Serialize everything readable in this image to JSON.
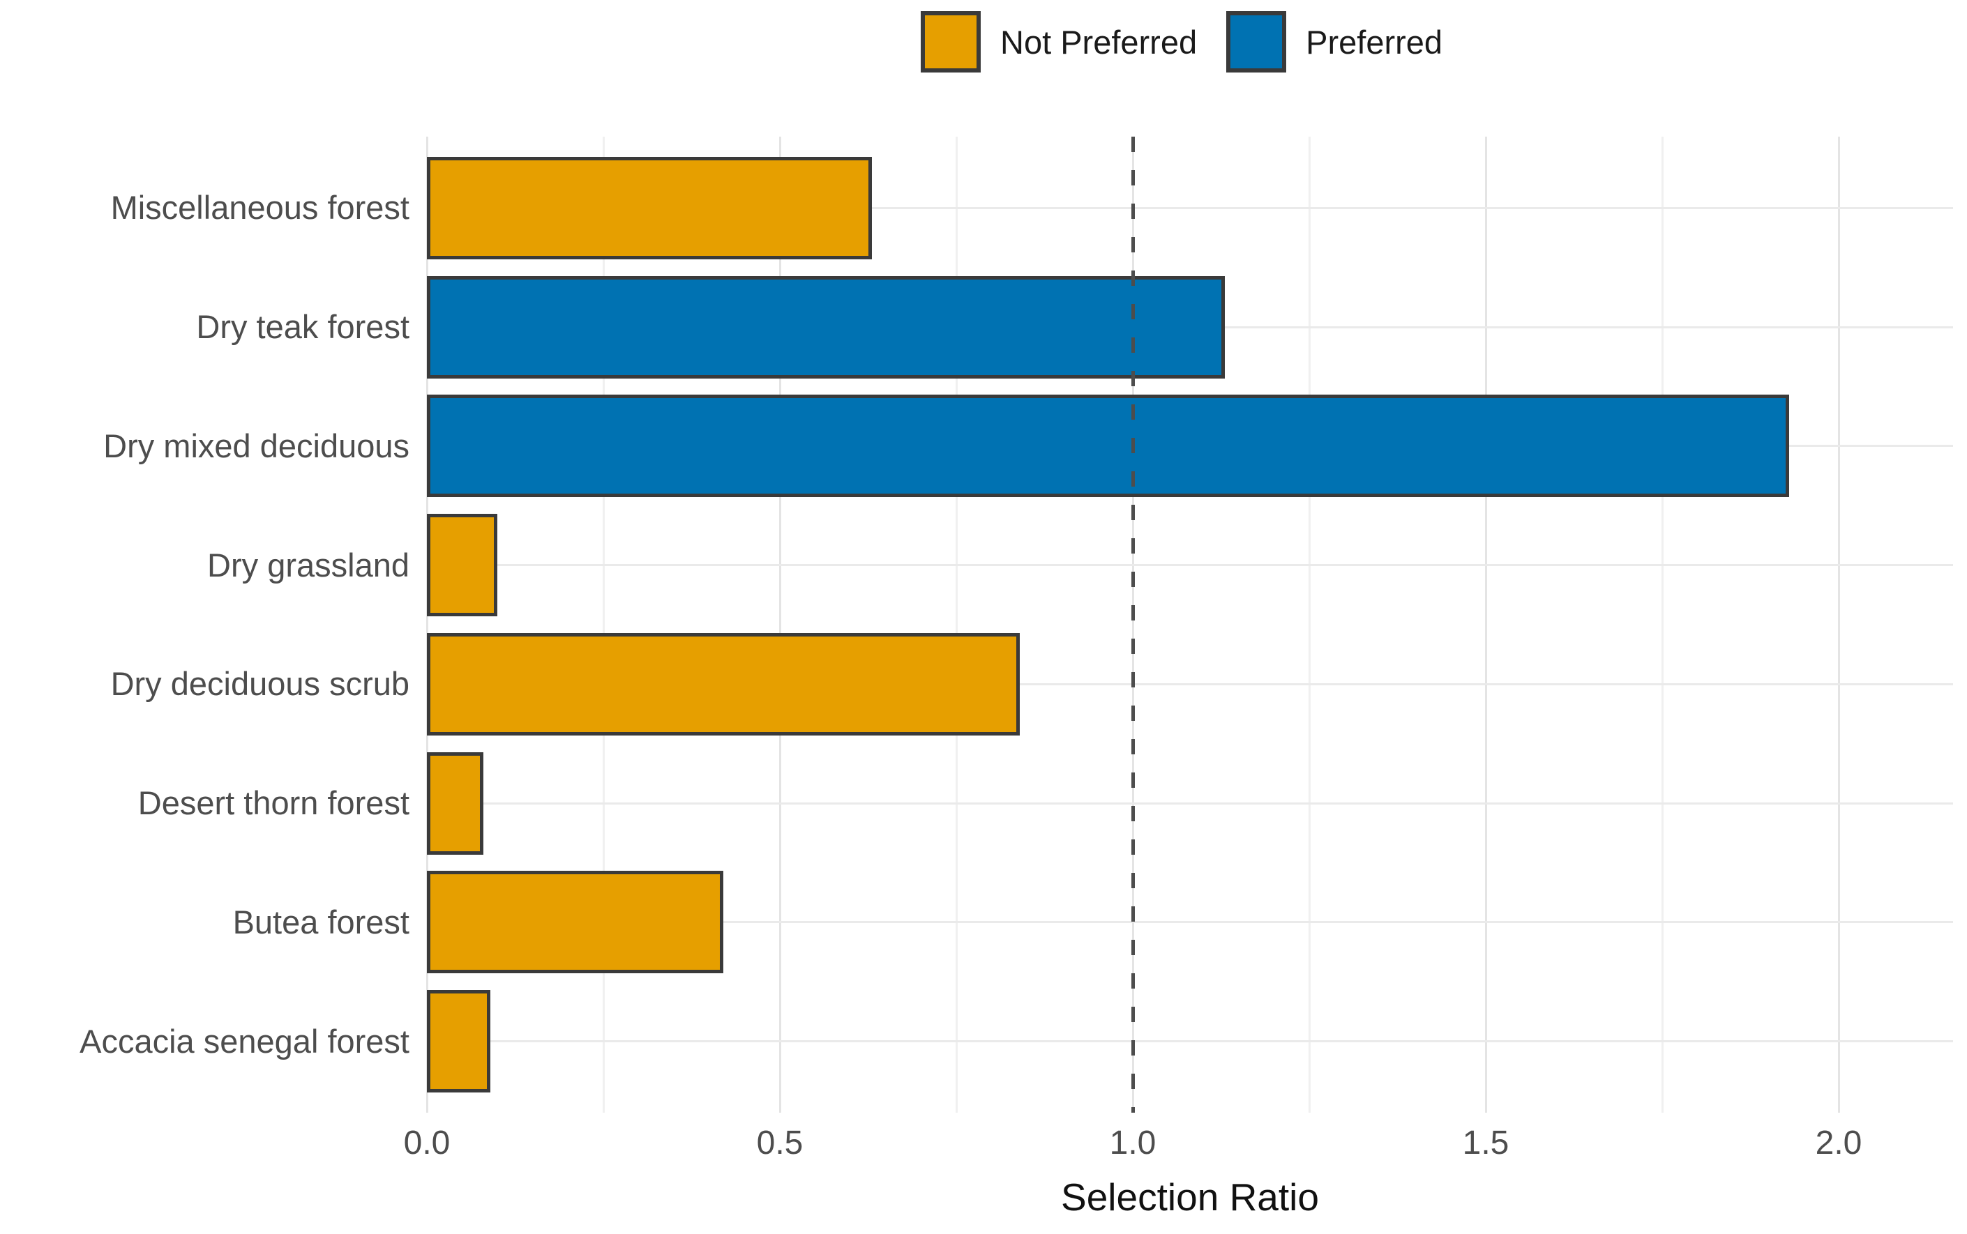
{
  "legend": {
    "items": [
      {
        "label": "Not Preferred",
        "color": "#E69F00"
      },
      {
        "label": "Preferred",
        "color": "#0072B2"
      }
    ]
  },
  "chart_data": {
    "type": "bar",
    "orientation": "horizontal",
    "title": "",
    "xlabel": "Selection Ratio",
    "ylabel": "",
    "categories": [
      "Miscellaneous forest",
      "Dry teak forest",
      "Dry mixed deciduous",
      "Dry grassland",
      "Dry deciduous scrub",
      "Desert thorn forest",
      "Butea forest",
      "Accacia senegal forest"
    ],
    "series": [
      {
        "name": "Selection Ratio",
        "values": [
          0.63,
          1.13,
          1.93,
          0.1,
          0.84,
          0.08,
          0.42,
          0.09
        ],
        "groups": [
          "Not Preferred",
          "Preferred",
          "Preferred",
          "Not Preferred",
          "Not Preferred",
          "Not Preferred",
          "Not Preferred",
          "Not Preferred"
        ]
      }
    ],
    "group_colors": {
      "Not Preferred": "#E69F00",
      "Preferred": "#0072B2"
    },
    "bar_border_color": "#3A3A3A",
    "x_ticks": [
      0.0,
      0.5,
      1.0,
      1.5,
      2.0
    ],
    "x_tick_labels": [
      "0.0",
      "0.5",
      "1.0",
      "1.5",
      "2.0"
    ],
    "x_minor_step": 0.25,
    "xlim": [
      0,
      2.16
    ],
    "reference_line": {
      "x": 1.0,
      "style": "dashed",
      "color": "#4D4D4D"
    },
    "grid": "on",
    "legend_position": "top"
  }
}
